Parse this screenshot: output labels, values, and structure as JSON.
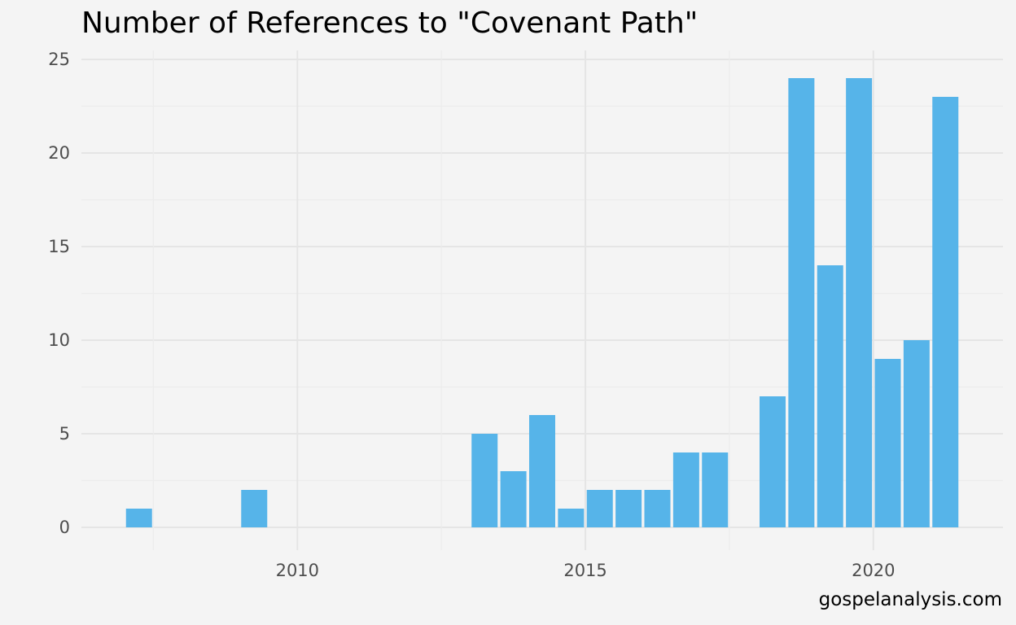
{
  "chart_data": {
    "type": "bar",
    "title": "Number of References to \"Covenant Path\"",
    "xlabel": "",
    "ylabel": "",
    "x": [
      2007.25,
      2009.25,
      2013.25,
      2013.75,
      2014.25,
      2014.75,
      2015.25,
      2015.75,
      2016.25,
      2016.75,
      2017.25,
      2018.25,
      2018.75,
      2019.25,
      2019.75,
      2020.25,
      2020.75,
      2021.25
    ],
    "values": [
      1,
      2,
      5,
      3,
      6,
      1,
      2,
      2,
      2,
      4,
      4,
      7,
      24,
      14,
      24,
      9,
      10,
      23
    ],
    "xlim": [
      2006.25,
      2022.25
    ],
    "ylim": [
      0,
      25
    ],
    "x_ticks": [
      2010,
      2015,
      2020
    ],
    "x_tick_labels": [
      "2010",
      "2015",
      "2020"
    ],
    "y_ticks": [
      0,
      5,
      10,
      15,
      20,
      25
    ],
    "y_tick_labels": [
      "0",
      "5",
      "10",
      "15",
      "20",
      "25"
    ],
    "bar_color": "#56B4E9",
    "grid": true,
    "legend": "none",
    "caption": "gospelanalysis.com"
  }
}
